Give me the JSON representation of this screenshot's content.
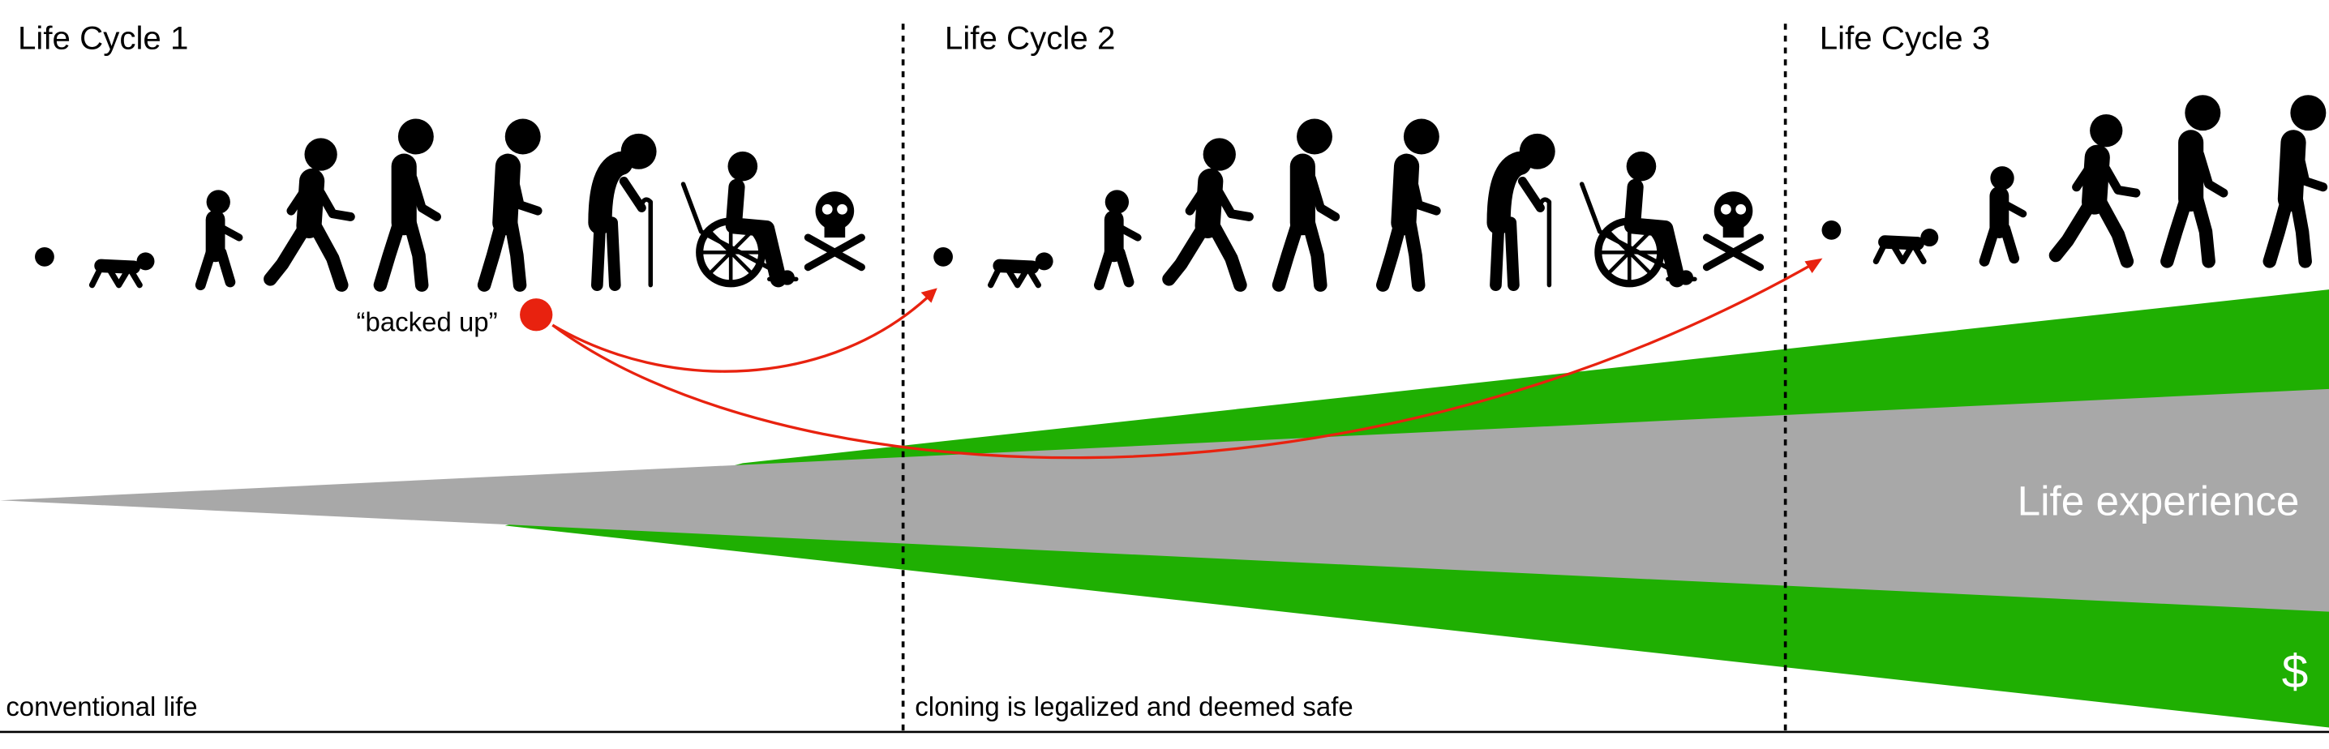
{
  "header": {
    "cycles": [
      "Life Cycle 1",
      "Life Cycle 2",
      "Life Cycle 3"
    ]
  },
  "annotations": {
    "backed_up": "“backed up”",
    "life_experience": "Life experience",
    "money": "$"
  },
  "eras": [
    "conventional life",
    "cloning is legalized and deemed safe"
  ]
}
